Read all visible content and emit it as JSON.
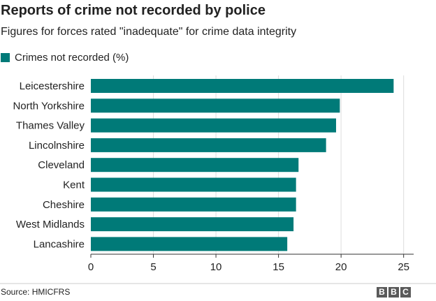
{
  "header": {
    "title": "Reports of crime not recorded by police",
    "subtitle": "Figures for forces rated \"inadequate\" for crime data integrity"
  },
  "footer": {
    "source": "Source: HMICFRS",
    "logo": [
      "B",
      "B",
      "C"
    ]
  },
  "colors": {
    "bar": "#007a78",
    "grid": "#dddddd",
    "axis": "#333333",
    "text": "#222222"
  },
  "chart_data": {
    "type": "bar",
    "orientation": "horizontal",
    "categories": [
      "Leicestershire",
      "North Yorkshire",
      "Thames Valley",
      "Lincolnshire",
      "Cleveland",
      "Kent",
      "Cheshire",
      "West Midlands",
      "Lancashire"
    ],
    "series": [
      {
        "name": "Crimes not recorded (%)",
        "values": [
          24.2,
          19.9,
          19.6,
          18.8,
          16.6,
          16.4,
          16.4,
          16.2,
          15.7
        ]
      }
    ],
    "title": "Reports of crime not recorded by police",
    "subtitle": "Figures for forces rated \"inadequate\" for crime data integrity",
    "xlim": [
      0,
      25.8
    ],
    "xticks": [
      0,
      5,
      10,
      15,
      20,
      25
    ],
    "grid": true,
    "legend_position": "top-left"
  }
}
